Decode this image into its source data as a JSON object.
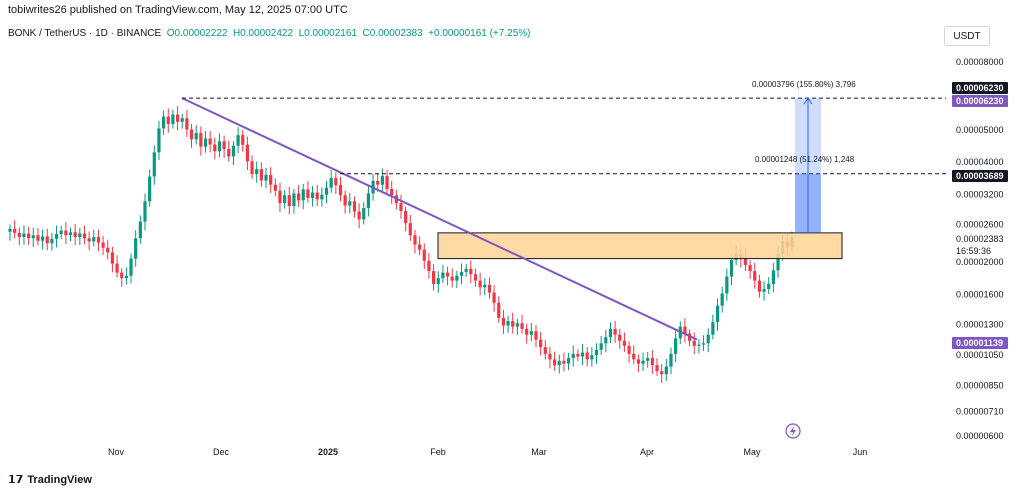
{
  "header": {
    "published": "tobiwrites26 published on TradingView.com, May 12, 2025 07:00 UTC",
    "symbol": "BONK / TetherUS · 1D · BINANCE",
    "open": "O0.00002222",
    "high": "H0.00002422",
    "low": "L0.00002161",
    "close": "C0.00002383",
    "change": "+0.00000161 (+7.25%)"
  },
  "currency_button": "USDT",
  "footer": {
    "logo_text": "TradingView"
  },
  "chart_data": {
    "type": "candlestick",
    "scale": "log",
    "x_axis_labels": [
      "Nov",
      "Dec",
      "2025",
      "Feb",
      "Mar",
      "Apr",
      "May",
      "Jun"
    ],
    "y_axis_labels": [
      "0.00008000",
      "0.00005000",
      "0.00004000",
      "0.00003200",
      "0.00002600",
      "0.00002000",
      "0.00001600",
      "0.00001300",
      "0.00001050",
      "0.00000850",
      "0.00000710",
      "0.00000600"
    ],
    "price_badges": [
      {
        "label": "0.00006230",
        "color": "#131722"
      },
      {
        "label": "0.00006230",
        "color": "#7e57c2"
      },
      {
        "label": "0.00003689",
        "color": "#131722"
      },
      {
        "label": "0.00002383",
        "color": "#ffffff"
      },
      {
        "label": "16:59:36",
        "color": "#ffffff"
      },
      {
        "label": "0.00001139",
        "color": "#7e57c2"
      }
    ],
    "annotations": {
      "target1": "0.00003796 (155.80%) 3,796",
      "target2": "0.00001248 (51.24%) 1,248"
    },
    "closes": [
      2.52e-05,
      2.45e-05,
      2.38e-05,
      2.44e-05,
      2.36e-05,
      2.41e-05,
      2.32e-05,
      2.39e-05,
      2.28e-05,
      2.35e-05,
      2.43e-05,
      2.49e-05,
      2.41e-05,
      2.46e-05,
      2.38e-05,
      2.44e-05,
      2.36e-05,
      2.31e-05,
      2.38e-05,
      2.29e-05,
      2.21e-05,
      2.14e-05,
      1.98e-05,
      1.86e-05,
      1.79e-05,
      1.82e-05,
      2.05e-05,
      2.36e-05,
      2.65e-05,
      3.05e-05,
      3.62e-05,
      4.28e-05,
      5.05e-05,
      5.48e-05,
      5.21e-05,
      5.56e-05,
      5.29e-05,
      5.42e-05,
      5.01e-05,
      4.68e-05,
      4.89e-05,
      4.45e-05,
      4.71e-05,
      4.52e-05,
      4.31e-05,
      4.62e-05,
      4.38e-05,
      4.16e-05,
      4.48e-05,
      4.82e-05,
      4.51e-05,
      4.02e-05,
      3.68e-05,
      3.81e-05,
      3.52e-05,
      3.66e-05,
      3.42e-05,
      3.28e-05,
      3.01e-05,
      3.18e-05,
      2.95e-05,
      3.22e-05,
      3.07e-05,
      3.31e-05,
      3.12e-05,
      3.24e-05,
      3.09e-05,
      3.19e-05,
      3.35e-05,
      3.58e-05,
      3.41e-05,
      3.18e-05,
      2.96e-05,
      3.05e-05,
      2.84e-05,
      2.69e-05,
      2.91e-05,
      3.22e-05,
      3.51e-05,
      3.42e-05,
      3.63e-05,
      3.32e-05,
      3.18e-05,
      3.01e-05,
      2.85e-05,
      2.62e-05,
      2.41e-05,
      2.26e-05,
      2.18e-05,
      2.02e-05,
      1.88e-05,
      1.72e-05,
      1.79e-05,
      1.86e-05,
      1.81e-05,
      1.76e-05,
      1.82e-05,
      1.87e-05,
      1.91e-05,
      1.84e-05,
      1.76e-05,
      1.68e-05,
      1.71e-05,
      1.62e-05,
      1.51e-05,
      1.36e-05,
      1.29e-05,
      1.33e-05,
      1.28e-05,
      1.31e-05,
      1.26e-05,
      1.21e-05,
      1.24e-05,
      1.17e-05,
      1.11e-05,
      1.06e-05,
      1.02e-05,
      9.8e-06,
      1.01e-05,
      9.9e-06,
      1.03e-05,
      1.06e-05,
      1.04e-05,
      1.07e-05,
      1.02e-05,
      1.05e-05,
      1.09e-05,
      1.14e-05,
      1.19e-05,
      1.26e-05,
      1.21e-05,
      1.16e-05,
      1.12e-05,
      1.06e-05,
      1.02e-05,
      9.9e-06,
      1.01e-05,
      1.03e-05,
      9.8e-06,
      9.4e-06,
      9.2e-06,
      9.7e-06,
      1.06e-05,
      1.18e-05,
      1.28e-05,
      1.22e-05,
      1.16e-05,
      1.12e-05,
      1.13e-05,
      1.14e-05,
      1.21e-05,
      1.32e-05,
      1.48e-05,
      1.61e-05,
      1.81e-05,
      2.03e-05,
      2.12e-05,
      2.05e-05,
      1.96e-05,
      1.88e-05,
      1.76e-05,
      1.63e-05,
      1.66e-05,
      1.72e-05,
      1.89e-05,
      2.12e-05,
      2.31e-05,
      2.22e-05,
      2.38e-05
    ]
  }
}
